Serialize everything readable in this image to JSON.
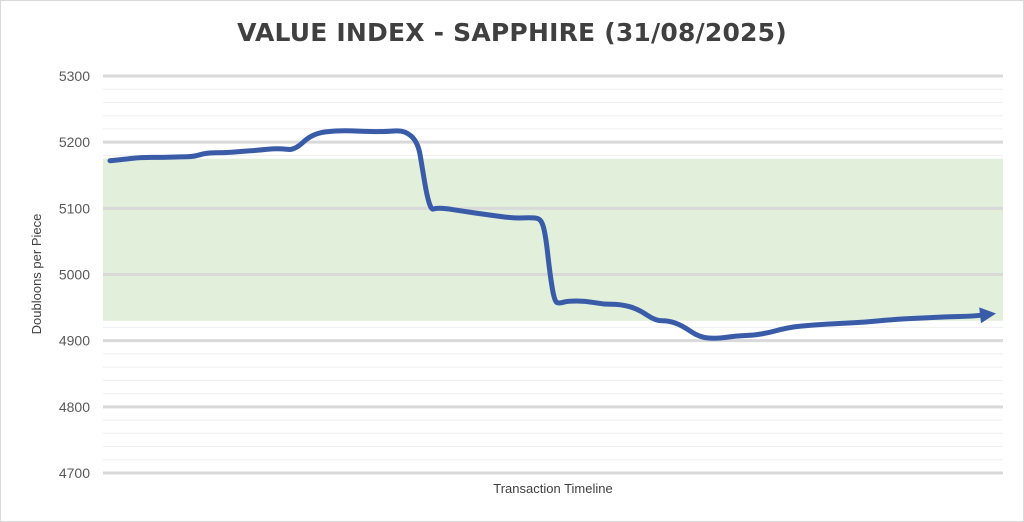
{
  "chart_data": {
    "type": "line",
    "title": "VALUE INDEX - SAPPHIRE (31/08/2025)",
    "xlabel": "Transaction Timeline",
    "ylabel": "Doubloons per Piece",
    "ylim": [
      4700,
      5300
    ],
    "yticks": [
      5300,
      5200,
      5100,
      5000,
      4900,
      4800,
      4700
    ],
    "grid": true,
    "colors": {
      "line": "#3a5ca8",
      "band": "#e2efda",
      "grid_major": "#d9d9d9",
      "grid_minor": "#efefef"
    },
    "band": {
      "ymin": 4930,
      "ymax": 5175
    },
    "series": [
      {
        "name": "",
        "x": [
          0,
          1.5,
          3.5,
          6,
          8,
          9.5,
          11,
          13,
          15,
          17,
          18.5,
          19.5,
          21,
          23,
          26,
          29,
          31.5,
          33.5,
          35,
          35.5,
          36,
          36.5,
          37,
          38,
          40,
          43,
          46,
          48,
          49,
          49.5,
          50,
          50.5,
          51,
          52,
          54,
          56,
          58,
          60,
          62,
          63.5,
          65,
          67,
          69,
          71,
          74,
          77,
          80,
          83,
          86,
          89,
          92,
          95,
          98,
          100
        ],
        "y": [
          5172,
          5174,
          5177,
          5177,
          5178,
          5178,
          5184,
          5184,
          5186,
          5188,
          5190,
          5190,
          5188,
          5213,
          5218,
          5216,
          5216,
          5218,
          5200,
          5160,
          5120,
          5098,
          5100,
          5100,
          5096,
          5090,
          5085,
          5086,
          5084,
          5060,
          5000,
          4960,
          4956,
          4960,
          4960,
          4955,
          4955,
          4948,
          4930,
          4930,
          4923,
          4905,
          4903,
          4907,
          4909,
          4920,
          4924,
          4926,
          4928,
          4932,
          4934,
          4936,
          4937,
          4940
        ]
      }
    ]
  }
}
